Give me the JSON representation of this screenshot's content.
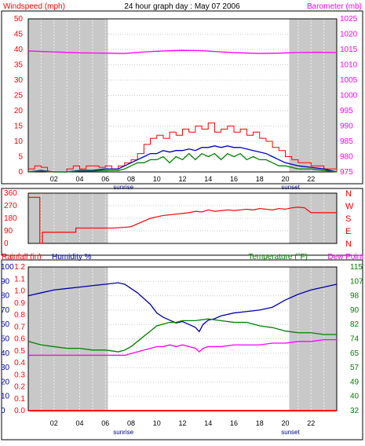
{
  "colors": {
    "wind": "#ff0000",
    "gust": "#ff0000",
    "wind_avg": "#008000",
    "wind_max": "#0000c0",
    "barometer": "#ff00ff",
    "direction": "#ff0000",
    "humidity": "#0000aa",
    "temperature": "#008000",
    "dewpoint": "#ff00ff",
    "rain_axis": "#ff0000",
    "hum_axis": "#0000aa",
    "temp_axis": "#008000",
    "grid": "#c8c8c8",
    "night": "#c8c8c8"
  },
  "chart_data": [
    {
      "type": "line",
      "title": "24 hour graph day : May 07 2006",
      "left_label": "Windspeed (mph)",
      "right_label": "Barometer (mb)",
      "x_ticks": [
        "02",
        "04",
        "06",
        "08",
        "10",
        "12",
        "14",
        "16",
        "18",
        "20",
        "22"
      ],
      "x_markers": [
        "sunrise",
        "sunset"
      ],
      "y_left": {
        "ticks": [
          "0",
          "5",
          "10",
          "15",
          "20",
          "25",
          "30",
          "35",
          "40",
          "45",
          "50"
        ],
        "range": [
          0,
          50
        ]
      },
      "y_right": {
        "ticks": [
          "975",
          "980",
          "985",
          "990",
          "995",
          "1000",
          "1005",
          "1010",
          "1015",
          "1020",
          "1025"
        ],
        "range": [
          975,
          1025
        ]
      },
      "sunrise_hour": 6.2,
      "sunset_hour": 20.3,
      "series": [
        {
          "key": "barometer",
          "axis": "right",
          "x": [
            0,
            2,
            4,
            6,
            7.5,
            9,
            10.5,
            12,
            13.5,
            15,
            16.5,
            18,
            19.5,
            21,
            22.5,
            24
          ],
          "values": [
            1014.5,
            1014.2,
            1013.9,
            1013.8,
            1013.7,
            1014.2,
            1014.5,
            1014.7,
            1014.6,
            1014.2,
            1013.9,
            1013.7,
            1013.8,
            1014.0,
            1014.1,
            1014.0
          ]
        },
        {
          "key": "gust",
          "axis": "left",
          "x": [
            0,
            0.5,
            1,
            1.5,
            2,
            2.5,
            3,
            3.5,
            4,
            4.5,
            5,
            5.5,
            6,
            6.5,
            7,
            7.5,
            8,
            8.5,
            9,
            9.5,
            10,
            10.5,
            11,
            11.5,
            12,
            12.5,
            13,
            13.5,
            14,
            14.5,
            15,
            15.5,
            16,
            16.5,
            17,
            17.5,
            18,
            18.5,
            19,
            19.5,
            20,
            20.5,
            21,
            21.5,
            22,
            22.5,
            23,
            23.5,
            24
          ],
          "values": [
            1,
            2,
            1.5,
            0,
            0,
            0,
            1,
            2,
            1,
            2,
            2,
            1.5,
            2,
            1,
            2,
            3,
            4,
            6,
            9,
            11,
            12,
            11,
            13,
            12,
            14,
            13,
            15,
            14,
            16,
            13,
            14,
            15,
            13,
            14,
            12,
            13,
            11,
            10,
            8,
            7,
            5,
            4,
            3,
            3,
            2,
            2,
            1,
            1,
            0
          ]
        },
        {
          "key": "wind_max",
          "axis": "left",
          "x": [
            0,
            1,
            2,
            3,
            4,
            5,
            6,
            7,
            7.5,
            8,
            8.5,
            9,
            9.5,
            10,
            10.5,
            11,
            11.5,
            12,
            12.5,
            13,
            13.5,
            14,
            14.5,
            15,
            15.5,
            16,
            16.5,
            17,
            17.5,
            18,
            18.5,
            19,
            19.5,
            20,
            21,
            22,
            23,
            24
          ],
          "values": [
            0,
            0.5,
            0,
            0,
            0.5,
            0.5,
            1,
            1,
            2,
            3,
            4,
            5,
            6,
            6,
            7,
            6.5,
            7,
            7,
            7.5,
            7,
            8,
            8,
            8.5,
            8,
            8.5,
            8,
            8,
            7.5,
            7,
            6.5,
            6,
            5,
            4,
            3,
            2,
            1.5,
            1,
            0
          ]
        },
        {
          "key": "wind_avg",
          "axis": "left",
          "x": [
            0,
            1,
            2,
            3,
            4,
            5,
            6,
            7,
            7.5,
            8,
            8.5,
            9,
            9.5,
            10,
            10.5,
            11,
            11.5,
            12,
            12.5,
            13,
            13.5,
            14,
            14.5,
            15,
            15.5,
            16,
            16.5,
            17,
            17.5,
            18,
            18.5,
            19,
            19.5,
            20,
            21,
            22,
            23,
            24
          ],
          "values": [
            0,
            0.3,
            0,
            0,
            0.3,
            0.3,
            0.5,
            0.5,
            1,
            2,
            3,
            3,
            4,
            4,
            5,
            3,
            5,
            4,
            6,
            4,
            6,
            5,
            6,
            4,
            6,
            5,
            6,
            4,
            5,
            4,
            4,
            3,
            2,
            2,
            1,
            1,
            0.5,
            0
          ]
        }
      ]
    },
    {
      "type": "line",
      "y_left": {
        "ticks": [
          "0",
          "90",
          "180",
          "270",
          "360"
        ],
        "range": [
          0,
          360
        ]
      },
      "y_right": {
        "ticks": [
          "N",
          "E",
          "S",
          "W",
          "N"
        ]
      },
      "series": [
        {
          "key": "direction",
          "x": [
            0,
            0.9,
            0.9,
            1.1,
            1.1,
            2.1,
            2.1,
            3.7,
            3.7,
            5.5,
            6.5,
            7.5,
            8,
            8.5,
            9,
            9.5,
            10,
            10.5,
            11,
            11.5,
            12,
            12.5,
            13,
            13.5,
            14,
            14.5,
            15,
            15.5,
            16,
            16.5,
            17,
            17.5,
            18,
            18.5,
            19,
            19.5,
            20,
            20.5,
            21,
            21.5,
            22,
            23,
            24
          ],
          "values": [
            330,
            330,
            0,
            0,
            80,
            80,
            80,
            80,
            110,
            110,
            110,
            115,
            120,
            140,
            160,
            180,
            190,
            200,
            205,
            210,
            215,
            220,
            230,
            225,
            240,
            230,
            235,
            240,
            235,
            240,
            245,
            240,
            250,
            245,
            240,
            250,
            245,
            255,
            260,
            255,
            220,
            220,
            220
          ]
        }
      ]
    },
    {
      "type": "line",
      "left_label_rain": "Rainfall (in)",
      "left_label_hum": "Humidity %",
      "right_label_temp": "Temperature (°F)",
      "right_label_dew": "Dew Point",
      "y_hum": {
        "ticks": [
          "0",
          "10",
          "20",
          "30",
          "40",
          "50",
          "60",
          "70",
          "80",
          "90",
          "100"
        ],
        "range": [
          0,
          100
        ]
      },
      "y_rain": {
        "ticks": [
          "0.0",
          "0.1",
          "0.2",
          "0.3",
          "0.4",
          "0.5",
          "0.6",
          "0.7",
          "0.8",
          "0.9",
          "1.0",
          "1.1",
          "1.2"
        ],
        "range": [
          0,
          1.2
        ]
      },
      "y_temp": {
        "ticks": [
          "32",
          "40",
          "49",
          "57",
          "65",
          "74",
          "82",
          "90",
          "98",
          "107",
          "115"
        ],
        "range": [
          32,
          115
        ]
      },
      "series": [
        {
          "key": "humidity",
          "axis": "hum",
          "x": [
            0,
            1,
            2,
            3,
            4,
            5,
            6,
            7,
            7.5,
            8,
            8.5,
            9,
            9.5,
            10,
            10.5,
            11,
            11.5,
            12,
            12.5,
            13,
            13.3,
            13.6,
            14,
            14.5,
            15,
            16,
            17,
            18,
            19,
            20,
            21,
            22,
            23,
            24
          ],
          "values": [
            80,
            82,
            84,
            85,
            86,
            87,
            88,
            89,
            88,
            85,
            82,
            78,
            74,
            68,
            65,
            63,
            61,
            62,
            60,
            58,
            55,
            60,
            63,
            64,
            66,
            68,
            69,
            70,
            72,
            77,
            81,
            84,
            86,
            88
          ]
        },
        {
          "key": "temperature",
          "axis": "temp",
          "x": [
            0,
            1,
            2,
            3,
            4,
            5,
            6,
            7,
            7.5,
            8,
            8.5,
            9,
            9.5,
            10,
            10.5,
            11,
            11.5,
            12,
            13,
            14,
            15,
            16,
            17,
            18,
            19,
            20,
            21,
            22,
            23,
            24
          ],
          "values": [
            72,
            70,
            69,
            68,
            68,
            67,
            67,
            66,
            67,
            69,
            72,
            75,
            78,
            81,
            82,
            83,
            83,
            84,
            84,
            85,
            84,
            83,
            83,
            81,
            80,
            78,
            77,
            77,
            76,
            76
          ]
        },
        {
          "key": "dewpoint",
          "axis": "temp",
          "x": [
            0,
            1,
            2,
            3,
            4,
            5,
            6,
            7,
            7.5,
            8,
            8.5,
            9,
            9.5,
            10,
            10.5,
            11,
            11.5,
            12,
            12.5,
            13,
            13.3,
            13.6,
            14,
            15,
            16,
            17,
            18,
            19,
            20,
            21,
            22,
            23,
            24
          ],
          "values": [
            64,
            64,
            64,
            64,
            64,
            64,
            64,
            64,
            64,
            65,
            66,
            67,
            68,
            69,
            69,
            70,
            69,
            70,
            69,
            68,
            66,
            68,
            69,
            69,
            70,
            70,
            70,
            71,
            71,
            72,
            72,
            73,
            73
          ]
        },
        {
          "key": "rain",
          "axis": "rain",
          "x": [
            0,
            24
          ],
          "values": [
            0,
            0
          ]
        }
      ]
    }
  ]
}
